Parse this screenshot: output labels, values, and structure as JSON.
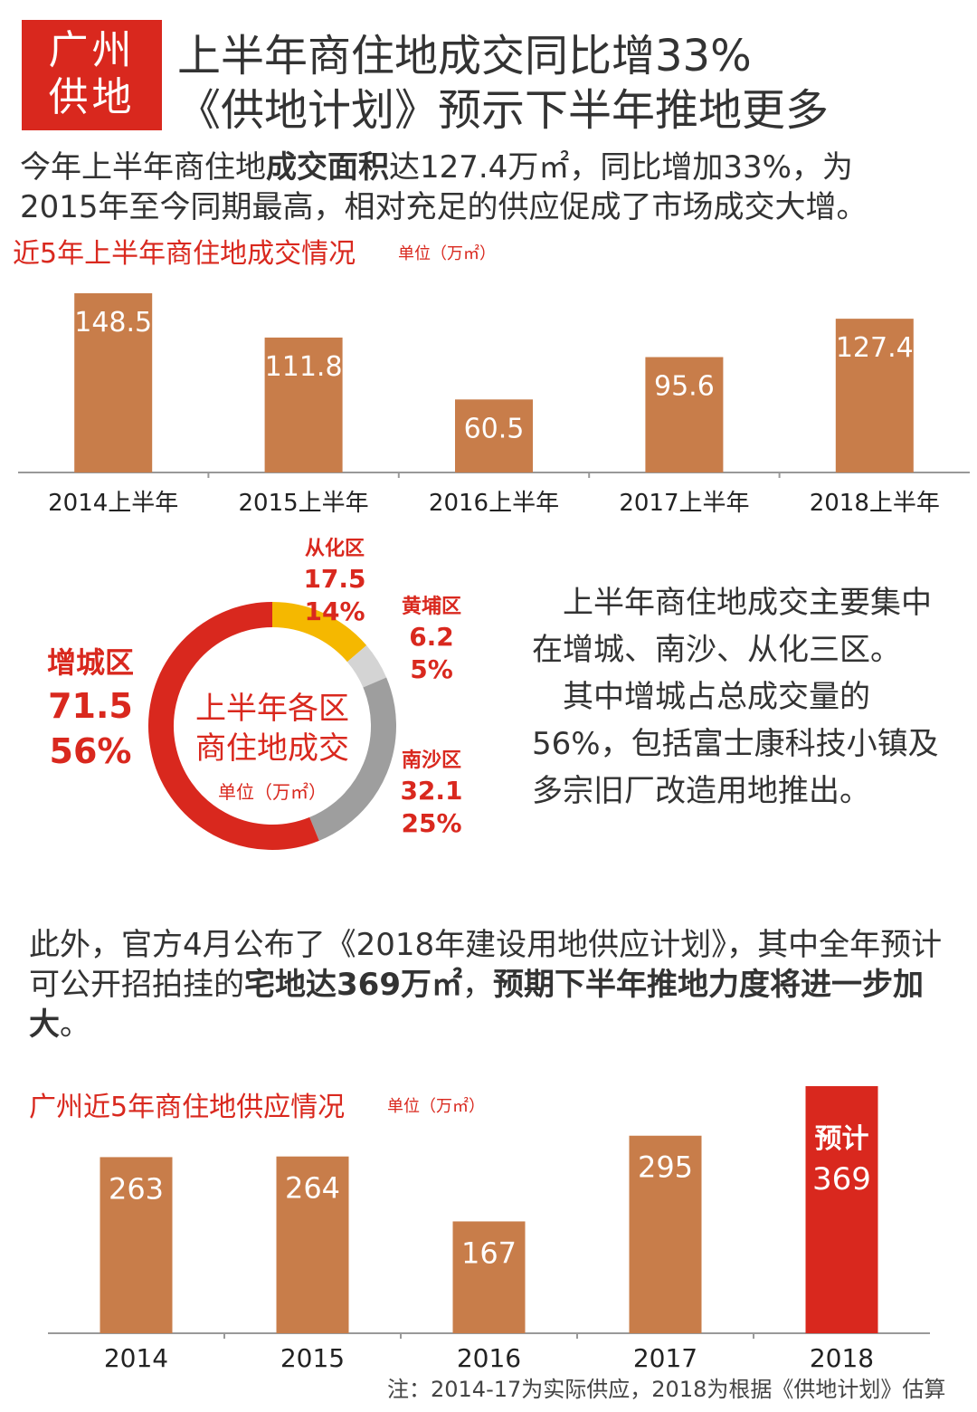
{
  "badge": {
    "line1": "广州",
    "line2": "供地"
  },
  "title": {
    "line1": "上半年商住地成交同比增33%",
    "line2": "《供地计划》预示下半年推地更多"
  },
  "intro": {
    "pre": "今年上半年商住地",
    "bold": "成交面积",
    "post1": "达127.4万㎡，同比增加33%，为",
    "line2": "2015年至今同期最高，相对充足的供应促成了市场成交大增。"
  },
  "chart1_title": "近5年上半年商住地成交情况",
  "chart1_unit": "单位（万㎡）",
  "chart2_title": "广州近5年商住地供应情况",
  "chart2_unit": "单位（万㎡）",
  "donut_center": {
    "line1": "上半年各区",
    "line2": "商住地成交",
    "unit": "单位（万㎡）"
  },
  "para2": {
    "p1": "上半年商住地成交主要集中在增城、南沙、从化三区。",
    "p2": "其中增城占总成交量的56%，包括富士康科技小镇及多宗旧厂改造用地推出。"
  },
  "para3": {
    "part1": "此外，官方4月公布了《2018年建设用地供应计划》，其中全年预计可公开招拍挂的",
    "bold1": "宅地达369万㎡",
    "mid": "，",
    "bold2": "预期下半年推地力度将进一步加大",
    "end": "。"
  },
  "note": "注：2014-17为实际供应，2018为根据《供地计划》估算",
  "colors": {
    "bar": "#c87d4a",
    "accent": "#d9281e",
    "yellow": "#f5b800",
    "lightgray": "#d4d4d4",
    "gray": "#9e9e9e",
    "text": "#333333"
  },
  "chart_data": [
    {
      "type": "bar",
      "title": "近5年上半年商住地成交情况",
      "unit": "单位（万㎡）",
      "categories": [
        "2014上半年",
        "2015上半年",
        "2016上半年",
        "2017上半年",
        "2018上半年"
      ],
      "values": [
        148.5,
        111.8,
        60.5,
        95.6,
        127.4
      ],
      "ylim": [
        0,
        148.5
      ]
    },
    {
      "type": "pie",
      "title": "上半年各区商住地成交",
      "unit": "单位（万㎡）",
      "slices": [
        {
          "label": "从化区",
          "value": 17.5,
          "percent": "14%",
          "color": "#f5b800"
        },
        {
          "label": "黄埔区",
          "value": 6.2,
          "percent": "5%",
          "color": "#d4d4d4"
        },
        {
          "label": "南沙区",
          "value": 32.1,
          "percent": "25%",
          "color": "#9e9e9e"
        },
        {
          "label": "增城区",
          "value": 71.5,
          "percent": "56%",
          "color": "#d9281e"
        }
      ]
    },
    {
      "type": "bar",
      "title": "广州近5年商住地供应情况",
      "unit": "单位（万㎡）",
      "categories": [
        "2014",
        "2015",
        "2016",
        "2017",
        "2018"
      ],
      "values": [
        263,
        264,
        167,
        295,
        369
      ],
      "value_prefix": [
        "",
        "",
        "",
        "",
        "预计"
      ],
      "highlight_index": 4,
      "ylim": [
        0,
        369
      ]
    }
  ]
}
